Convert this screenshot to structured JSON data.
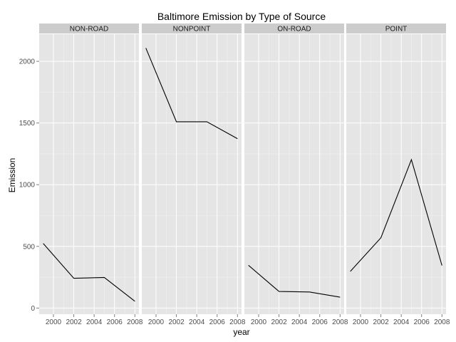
{
  "chart_data": {
    "type": "line",
    "title": "Baltimore Emission by Type of Source",
    "xlabel": "year",
    "ylabel": "Emission",
    "x_ticks": [
      2000,
      2002,
      2004,
      2006,
      2008
    ],
    "y_ticks": [
      0,
      500,
      1000,
      1500,
      2000
    ],
    "xlim": [
      1998.6,
      2008.4
    ],
    "ylim": [
      -50,
      2220
    ],
    "grid": true,
    "facets": [
      {
        "label": "NON-ROAD",
        "x": [
          1999,
          2002,
          2005,
          2008
        ],
        "y": [
          523,
          241,
          248,
          55
        ]
      },
      {
        "label": "NONPOINT",
        "x": [
          1999,
          2002,
          2005,
          2008
        ],
        "y": [
          2108,
          1510,
          1510,
          1373
        ]
      },
      {
        "label": "ON-ROAD",
        "x": [
          1999,
          2002,
          2005,
          2008
        ],
        "y": [
          347,
          134,
          130,
          88
        ]
      },
      {
        "label": "POINT",
        "x": [
          1999,
          2002,
          2005,
          2008
        ],
        "y": [
          297,
          570,
          1203,
          345
        ]
      }
    ]
  },
  "colors": {
    "panel_background": "#e5e5e5",
    "strip_background": "#cccccc",
    "grid_major": "#ffffff",
    "grid_minor": "#f2f2f2",
    "line": "#000000"
  }
}
